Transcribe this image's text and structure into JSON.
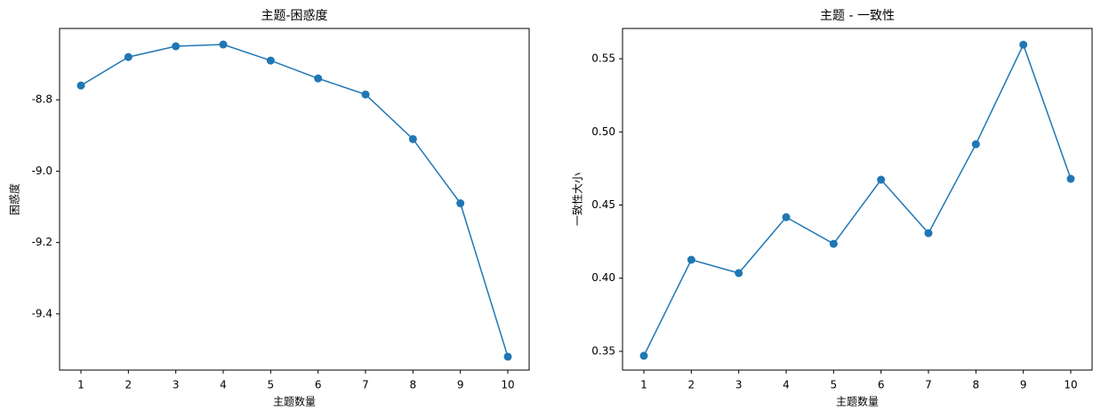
{
  "chart_data": [
    {
      "type": "line",
      "title": "主题-困惑度",
      "x_label": "主题数量",
      "y_label": "困惑度",
      "x": [
        1,
        2,
        3,
        4,
        5,
        6,
        7,
        8,
        9,
        10
      ],
      "series": [
        {
          "color": "#1f77b4",
          "values": [
            -8.76,
            -8.68,
            -8.65,
            -8.645,
            -8.69,
            -8.74,
            -8.785,
            -8.91,
            -9.09,
            -9.52
          ]
        }
      ],
      "xlim": [
        0.55,
        10.45
      ],
      "xticks": [
        1,
        2,
        3,
        4,
        5,
        6,
        7,
        8,
        9,
        10
      ],
      "ylim": [
        -9.5575,
        -8.6
      ],
      "yticks": [
        -8.8,
        {
          "value": -9.0,
          "label": "-9.0"
        },
        -9.2,
        -9.4
      ]
    },
    {
      "type": "line",
      "title": "主题 - 一致性",
      "x_label": "主题数量",
      "y_label": "一致性大小",
      "x": [
        1,
        2,
        3,
        4,
        5,
        6,
        7,
        8,
        9,
        10
      ],
      "series": [
        {
          "color": "#1f77b4",
          "values": [
            0.347,
            0.4126,
            0.4035,
            0.4417,
            0.4235,
            0.4673,
            0.4308,
            0.4916,
            0.5596,
            0.4679
          ]
        }
      ],
      "xlim": [
        0.55,
        10.45
      ],
      "xticks": [
        1,
        2,
        3,
        4,
        5,
        6,
        7,
        8,
        9,
        10
      ],
      "ylim": [
        0.3372,
        0.5707
      ],
      "yticks": [
        0.35,
        {
          "value": 0.4,
          "label": "0.40"
        },
        0.45,
        {
          "value": 0.5,
          "label": "0.50"
        },
        0.55
      ]
    }
  ]
}
